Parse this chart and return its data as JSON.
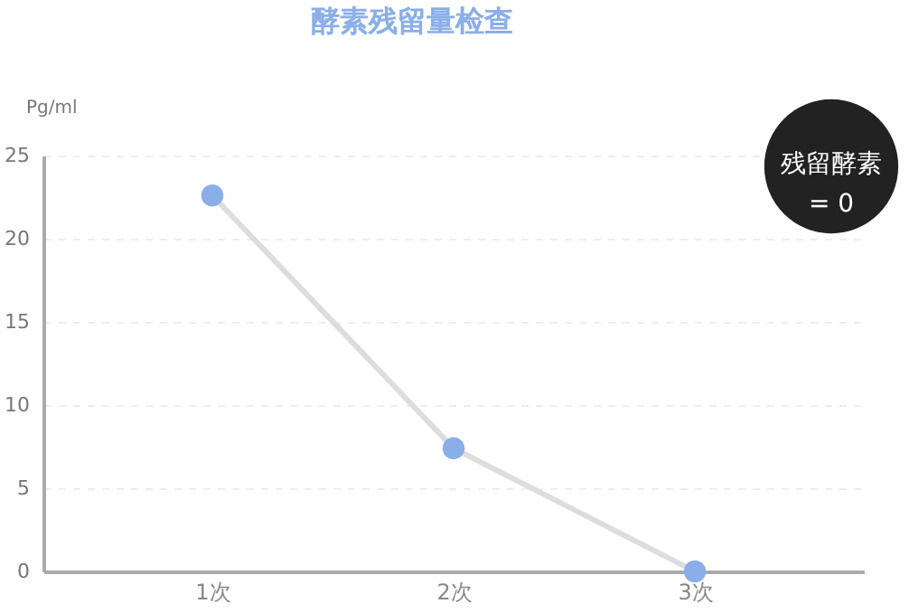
{
  "chart_data": {
    "type": "line",
    "title": "酵素残留量检查",
    "ylabel": "Pg/ml",
    "categories": [
      "1次",
      "2次",
      "3次"
    ],
    "series": [
      {
        "color": "#8aaee8",
        "values": [
          22.6,
          7.4,
          0
        ]
      }
    ],
    "ylim": [
      0,
      25
    ],
    "yticks": [
      0,
      5,
      10,
      15,
      20,
      25
    ],
    "grid": "y",
    "marker": "circle",
    "line_style": "solid",
    "annotations": [
      "残留酵素\n= 0"
    ]
  }
}
